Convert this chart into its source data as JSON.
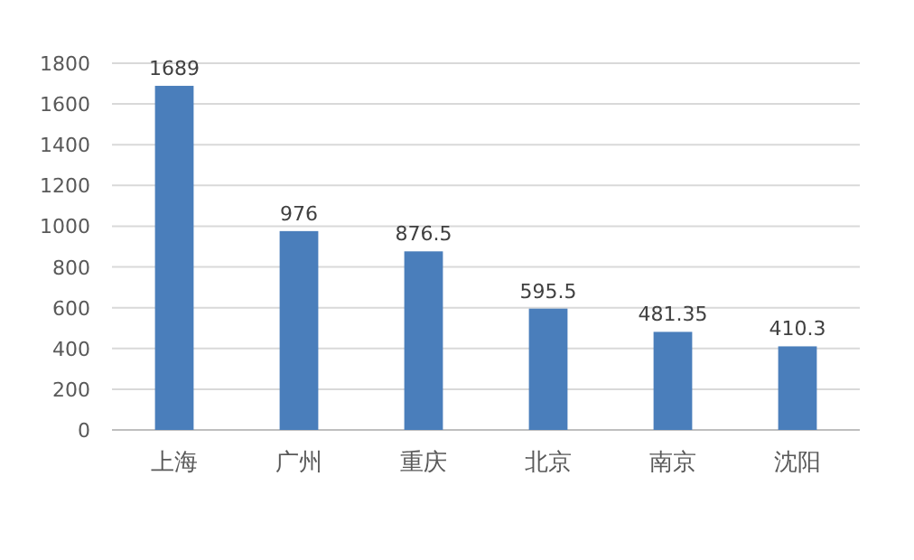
{
  "chart_data": {
    "type": "bar",
    "categories": [
      "上海",
      "广州",
      "重庆",
      "北京",
      "南京",
      "沈阳"
    ],
    "values": [
      1689,
      976,
      876.5,
      595.5,
      481.35,
      410.3
    ],
    "color": "#4a7ebb",
    "ylim": [
      0,
      1800
    ],
    "yticks": [
      0,
      200,
      400,
      600,
      800,
      1000,
      1200,
      1400,
      1600,
      1800
    ],
    "grid": "y",
    "data_labels": true
  }
}
